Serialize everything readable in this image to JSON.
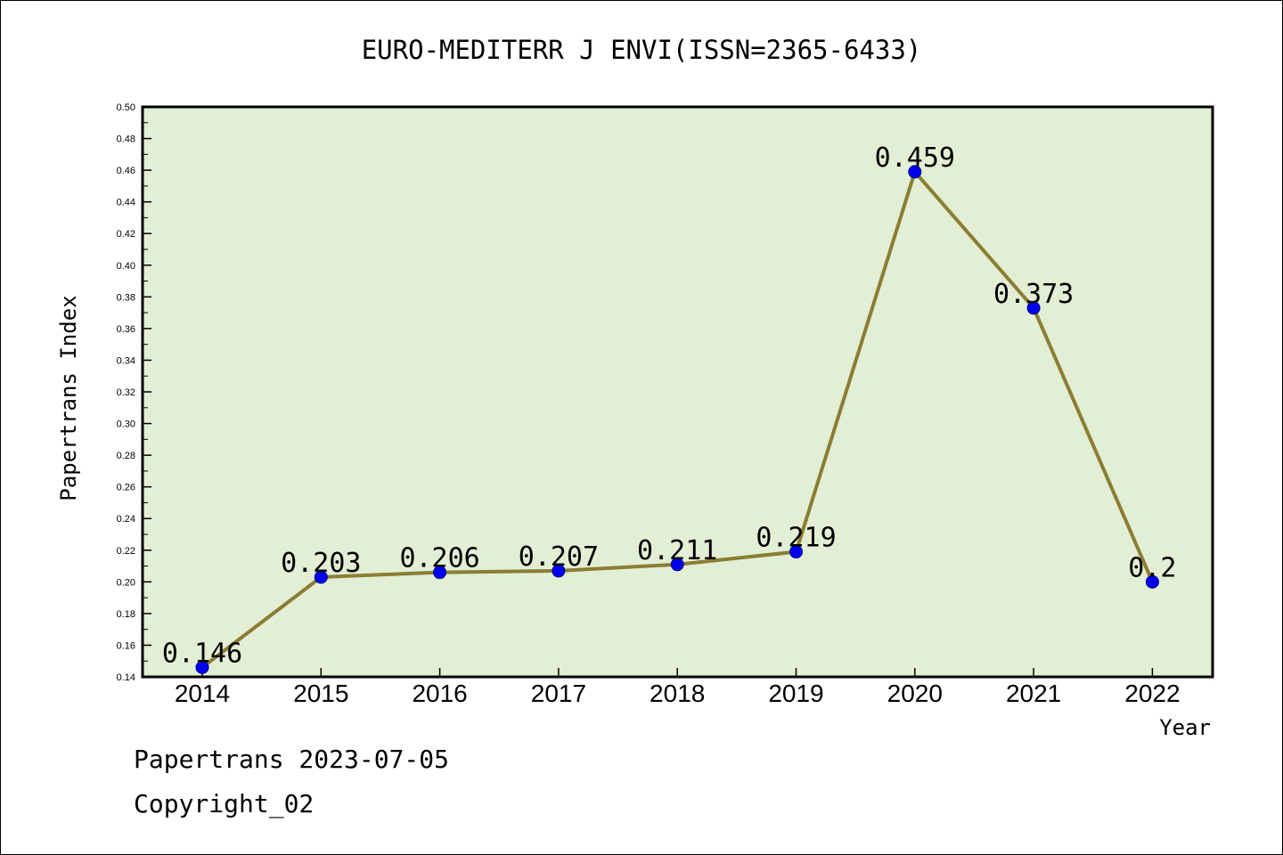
{
  "chart_data": {
    "type": "line",
    "title": "EURO-MEDITERR J ENVI(ISSN=2365-6433)",
    "xlabel": "Year",
    "ylabel": "Papertrans Index",
    "categories": [
      "2014",
      "2015",
      "2016",
      "2017",
      "2018",
      "2019",
      "2020",
      "2021",
      "2022"
    ],
    "series": [
      {
        "values": [
          0.146,
          0.203,
          0.206,
          0.207,
          0.211,
          0.219,
          0.459,
          0.373,
          0.2
        ]
      }
    ],
    "data_labels": [
      "0.146",
      "0.203",
      "0.206",
      "0.207",
      "0.211",
      "0.219",
      "0.459",
      "0.373",
      "0.2"
    ],
    "ylim": [
      0.14,
      0.5
    ],
    "yticks": [
      "0.14",
      "0.16",
      "0.18",
      "0.20",
      "0.22",
      "0.24",
      "0.26",
      "0.28",
      "0.30",
      "0.32",
      "0.34",
      "0.36",
      "0.38",
      "0.40",
      "0.42",
      "0.44",
      "0.46",
      "0.48",
      "0.50"
    ],
    "grid": false,
    "colors": {
      "plot_bg": "#e2efd4",
      "line": "#8b7d34",
      "marker": "#0000ee"
    }
  },
  "footer": {
    "line1": "Papertrans 2023-07-05",
    "line2": "Copyright_02"
  }
}
